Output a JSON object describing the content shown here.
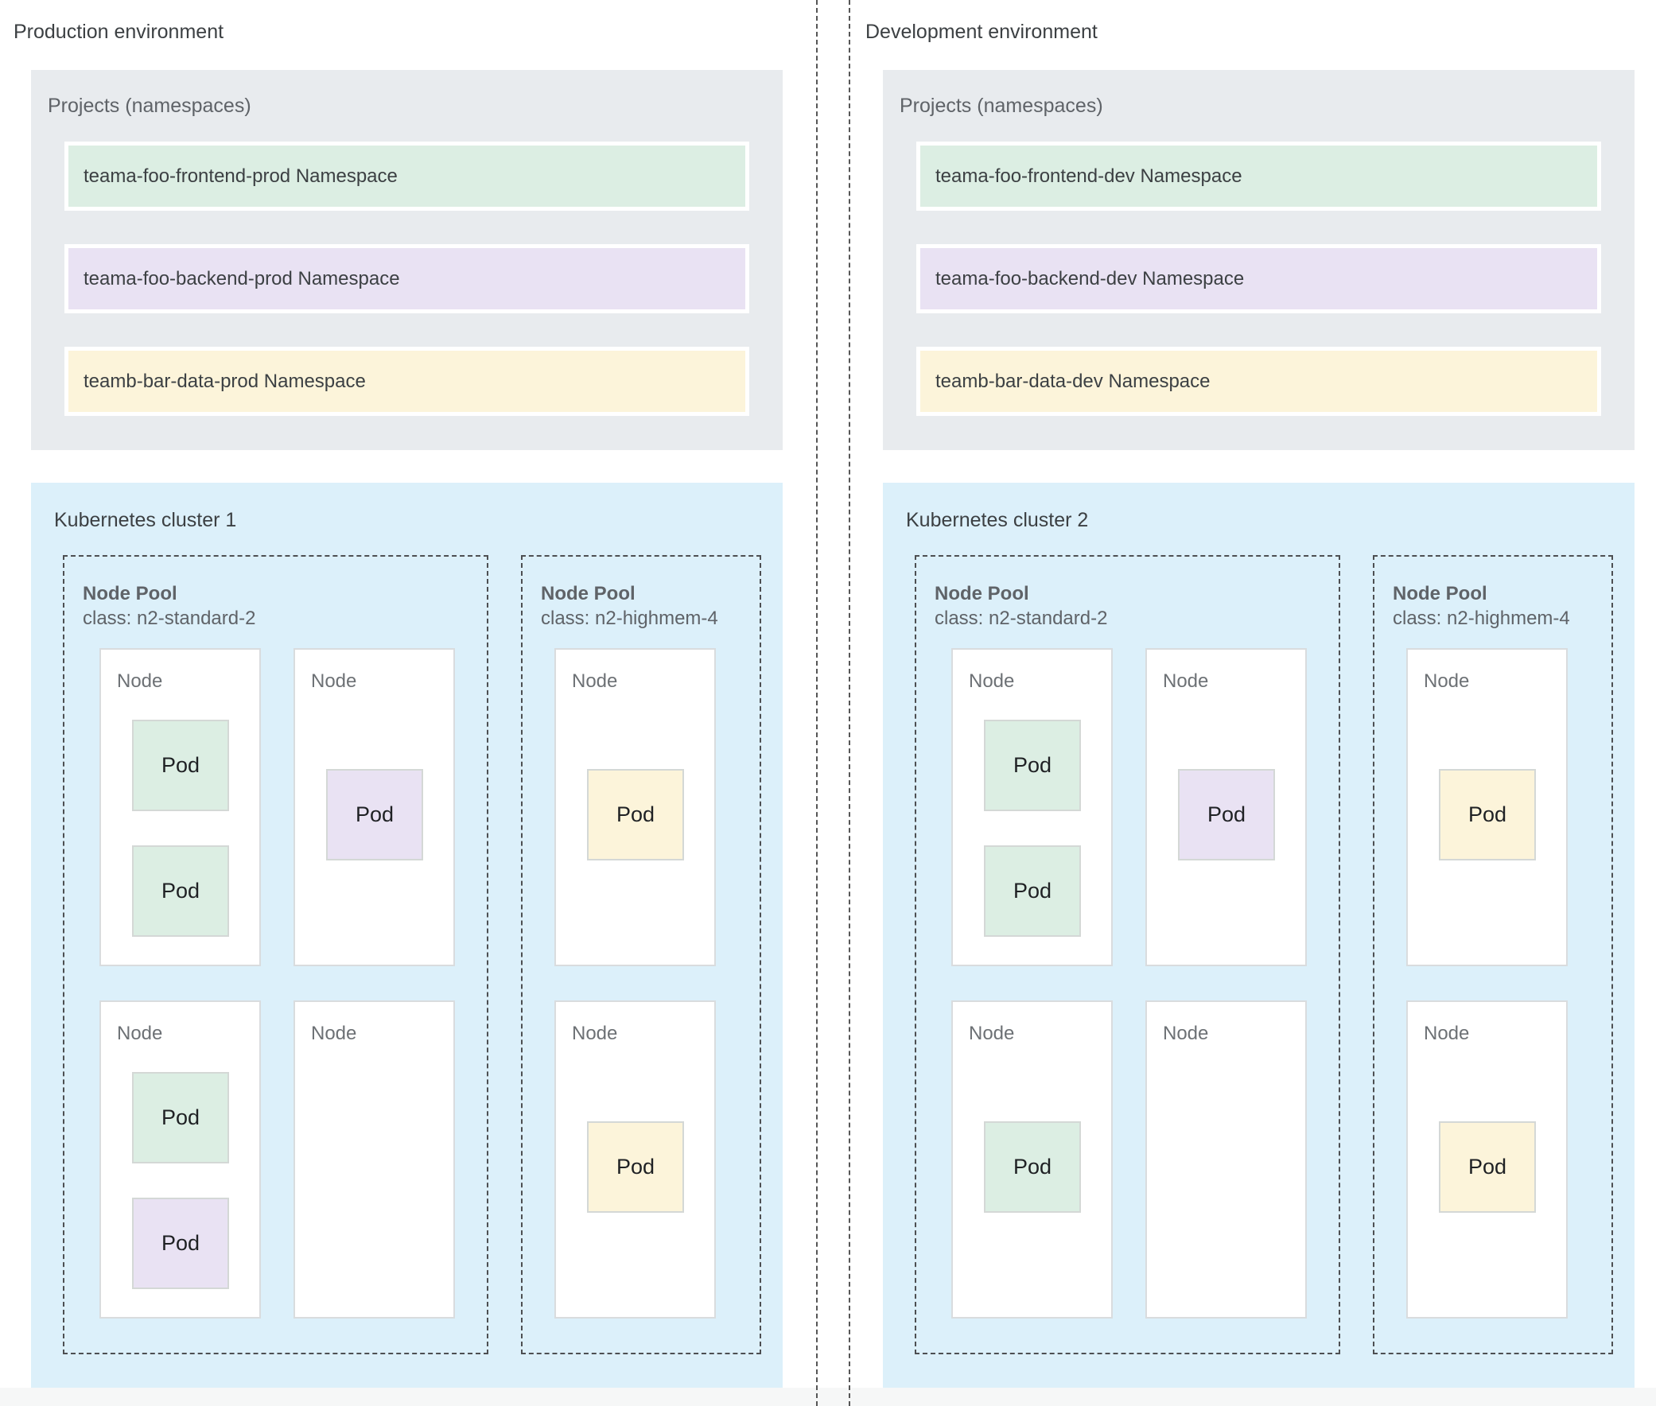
{
  "diagram": {
    "colors": {
      "projects_box_bg": "#e8ebee",
      "cluster_box_bg": "#dcf0fa",
      "namespace_green": "#dceee3",
      "namespace_purple": "#e9e2f3",
      "namespace_yellow": "#fcf4da",
      "node_bg": "#ffffff",
      "label_gray": "#5f6368"
    },
    "environments": [
      {
        "title": "Production environment",
        "projects": {
          "label": "Projects (namespaces)",
          "namespaces": [
            {
              "label": "teama-foo-frontend-prod Namespace",
              "color": "green"
            },
            {
              "label": "teama-foo-backend-prod Namespace",
              "color": "purple"
            },
            {
              "label": "teamb-bar-data-prod Namespace",
              "color": "yellow"
            }
          ]
        },
        "cluster": {
          "title": "Kubernetes cluster 1",
          "pools": [
            {
              "title": "Node Pool",
              "machine_class": "class: n2-standard-2",
              "nodes": [
                {
                  "label": "Node",
                  "pods": [
                    {
                      "label": "Pod",
                      "color": "green"
                    },
                    {
                      "label": "Pod",
                      "color": "green"
                    }
                  ]
                },
                {
                  "label": "Node",
                  "pods": [
                    {
                      "label": "Pod",
                      "color": "purple"
                    }
                  ]
                },
                {
                  "label": "Node",
                  "pods": [
                    {
                      "label": "Pod",
                      "color": "green"
                    },
                    {
                      "label": "Pod",
                      "color": "purple"
                    }
                  ]
                },
                {
                  "label": "Node",
                  "pods": []
                }
              ]
            },
            {
              "title": "Node Pool",
              "machine_class": "class: n2-highmem-4",
              "nodes": [
                {
                  "label": "Node",
                  "pods": [
                    {
                      "label": "Pod",
                      "color": "yellow"
                    }
                  ]
                },
                {
                  "label": "Node",
                  "pods": [
                    {
                      "label": "Pod",
                      "color": "yellow"
                    }
                  ]
                }
              ]
            }
          ]
        }
      },
      {
        "title": "Development environment",
        "projects": {
          "label": "Projects (namespaces)",
          "namespaces": [
            {
              "label": "teama-foo-frontend-dev Namespace",
              "color": "green"
            },
            {
              "label": "teama-foo-backend-dev Namespace",
              "color": "purple"
            },
            {
              "label": "teamb-bar-data-dev Namespace",
              "color": "yellow"
            }
          ]
        },
        "cluster": {
          "title": "Kubernetes cluster 2",
          "pools": [
            {
              "title": "Node Pool",
              "machine_class": "class: n2-standard-2",
              "nodes": [
                {
                  "label": "Node",
                  "pods": [
                    {
                      "label": "Pod",
                      "color": "green"
                    },
                    {
                      "label": "Pod",
                      "color": "green"
                    }
                  ]
                },
                {
                  "label": "Node",
                  "pods": [
                    {
                      "label": "Pod",
                      "color": "purple"
                    }
                  ]
                },
                {
                  "label": "Node",
                  "pods": [
                    {
                      "label": "Pod",
                      "color": "green"
                    }
                  ]
                },
                {
                  "label": "Node",
                  "pods": []
                }
              ]
            },
            {
              "title": "Node Pool",
              "machine_class": "class: n2-highmem-4",
              "nodes": [
                {
                  "label": "Node",
                  "pods": [
                    {
                      "label": "Pod",
                      "color": "yellow"
                    }
                  ]
                },
                {
                  "label": "Node",
                  "pods": [
                    {
                      "label": "Pod",
                      "color": "yellow"
                    }
                  ]
                }
              ]
            }
          ]
        }
      }
    ]
  }
}
